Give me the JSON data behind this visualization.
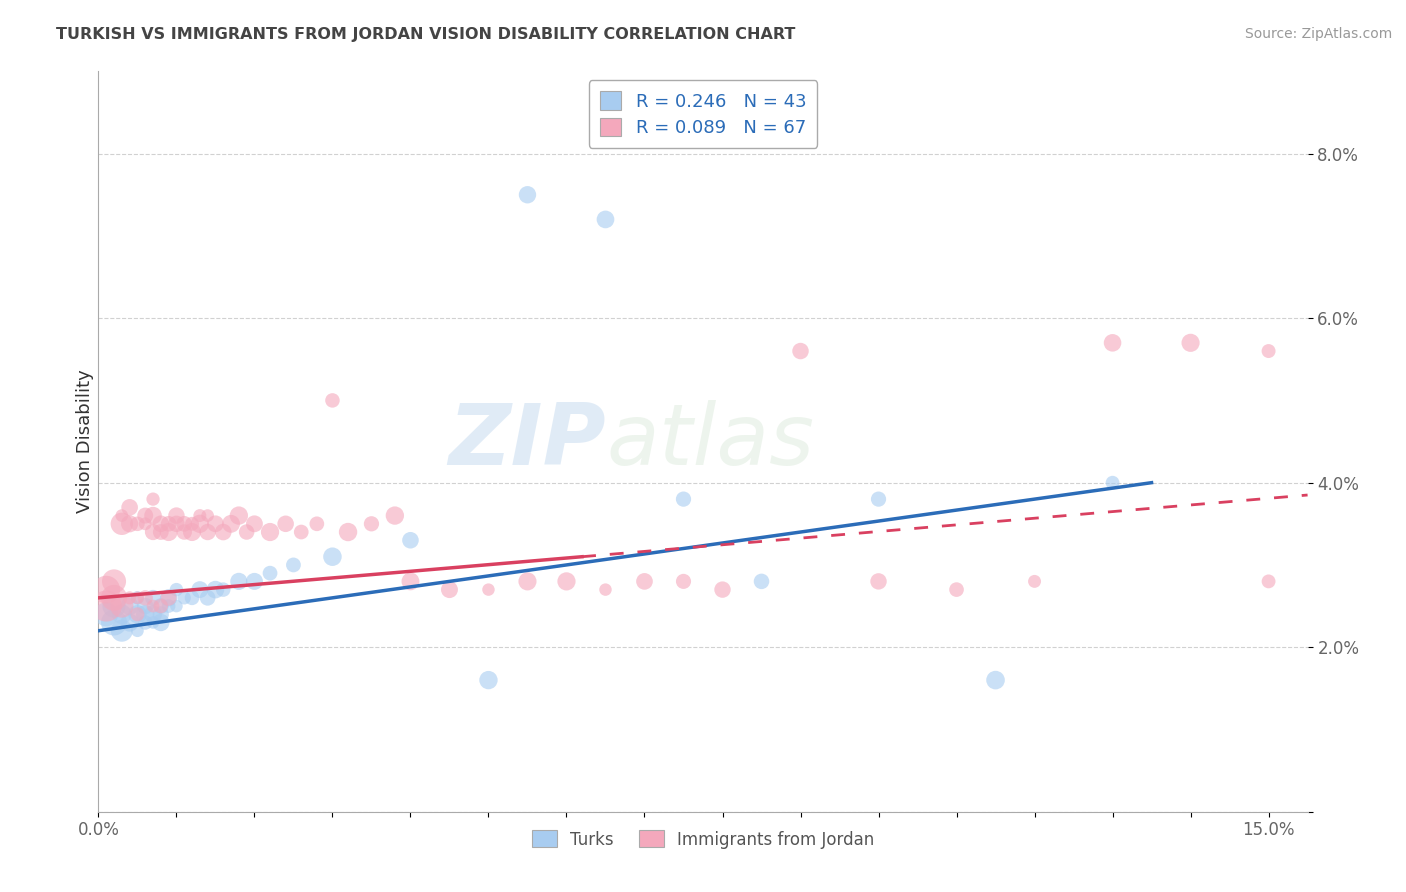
{
  "title": "TURKISH VS IMMIGRANTS FROM JORDAN VISION DISABILITY CORRELATION CHART",
  "source": "Source: ZipAtlas.com",
  "ylabel": "Vision Disability",
  "xlabel": "",
  "xlim": [
    0.0,
    0.155
  ],
  "ylim": [
    0.0,
    0.09
  ],
  "turks_R": 0.246,
  "turks_N": 43,
  "jordan_R": 0.089,
  "jordan_N": 67,
  "turks_color": "#A8CCF0",
  "jordan_color": "#F4A8BC",
  "background_color": "#FFFFFF",
  "watermark_zip": "ZIP",
  "watermark_atlas": "atlas",
  "turks_label": "Turks",
  "jordan_label": "Immigrants from Jordan",
  "turks_x": [
    0.001,
    0.002,
    0.002,
    0.003,
    0.003,
    0.004,
    0.004,
    0.005,
    0.005,
    0.005,
    0.006,
    0.006,
    0.006,
    0.007,
    0.007,
    0.007,
    0.008,
    0.008,
    0.008,
    0.009,
    0.009,
    0.01,
    0.01,
    0.011,
    0.012,
    0.013,
    0.014,
    0.015,
    0.016,
    0.018,
    0.02,
    0.022,
    0.025,
    0.03,
    0.04,
    0.05,
    0.055,
    0.065,
    0.075,
    0.085,
    0.1,
    0.115,
    0.13
  ],
  "turks_y": [
    0.024,
    0.023,
    0.025,
    0.022,
    0.024,
    0.023,
    0.025,
    0.022,
    0.024,
    0.026,
    0.023,
    0.025,
    0.024,
    0.024,
    0.023,
    0.026,
    0.024,
    0.025,
    0.023,
    0.025,
    0.026,
    0.025,
    0.027,
    0.026,
    0.026,
    0.027,
    0.026,
    0.027,
    0.027,
    0.028,
    0.028,
    0.029,
    0.03,
    0.031,
    0.033,
    0.016,
    0.075,
    0.072,
    0.038,
    0.028,
    0.038,
    0.016,
    0.04
  ],
  "jordan_x": [
    0.001,
    0.001,
    0.002,
    0.002,
    0.003,
    0.003,
    0.003,
    0.004,
    0.004,
    0.004,
    0.005,
    0.005,
    0.005,
    0.006,
    0.006,
    0.006,
    0.007,
    0.007,
    0.007,
    0.007,
    0.008,
    0.008,
    0.008,
    0.009,
    0.009,
    0.009,
    0.01,
    0.01,
    0.011,
    0.011,
    0.012,
    0.012,
    0.013,
    0.013,
    0.014,
    0.014,
    0.015,
    0.016,
    0.017,
    0.018,
    0.019,
    0.02,
    0.022,
    0.024,
    0.026,
    0.028,
    0.03,
    0.032,
    0.035,
    0.038,
    0.04,
    0.045,
    0.05,
    0.055,
    0.06,
    0.065,
    0.07,
    0.075,
    0.08,
    0.09,
    0.1,
    0.11,
    0.12,
    0.13,
    0.14,
    0.15,
    0.15
  ],
  "jordan_y": [
    0.025,
    0.027,
    0.026,
    0.028,
    0.025,
    0.035,
    0.036,
    0.026,
    0.035,
    0.037,
    0.026,
    0.035,
    0.024,
    0.035,
    0.036,
    0.026,
    0.025,
    0.034,
    0.036,
    0.038,
    0.025,
    0.035,
    0.034,
    0.026,
    0.035,
    0.034,
    0.035,
    0.036,
    0.034,
    0.035,
    0.034,
    0.035,
    0.035,
    0.036,
    0.034,
    0.036,
    0.035,
    0.034,
    0.035,
    0.036,
    0.034,
    0.035,
    0.034,
    0.035,
    0.034,
    0.035,
    0.05,
    0.034,
    0.035,
    0.036,
    0.028,
    0.027,
    0.027,
    0.028,
    0.028,
    0.027,
    0.028,
    0.028,
    0.027,
    0.056,
    0.028,
    0.027,
    0.028,
    0.057,
    0.057,
    0.028,
    0.056
  ]
}
